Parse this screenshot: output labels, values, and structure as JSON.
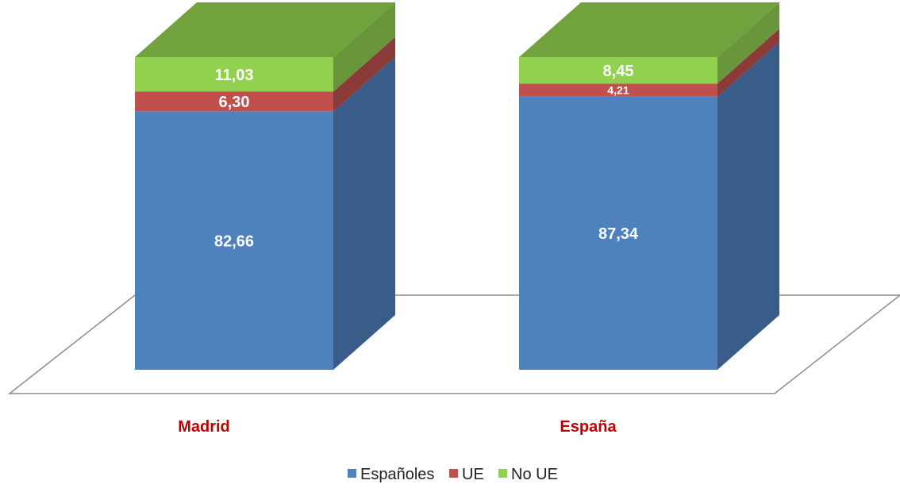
{
  "chart_data": {
    "type": "bar",
    "stacked": true,
    "three_d": true,
    "categories": [
      "Madrid",
      "España"
    ],
    "series": [
      {
        "name": "Españoles",
        "values": [
          82.66,
          87.34
        ],
        "labels": [
          "82,66",
          "87,34"
        ],
        "color": "#4F81BD"
      },
      {
        "name": "UE",
        "values": [
          6.3,
          4.21
        ],
        "labels": [
          "6,30",
          "4,21"
        ],
        "color": "#C0504D"
      },
      {
        "name": "No UE",
        "values": [
          11.03,
          8.45
        ],
        "labels": [
          "11,03",
          "8,45"
        ],
        "color": "#92D050"
      }
    ],
    "category_label_color": "#C00000",
    "legend_position": "bottom",
    "grid": false,
    "ylim": [
      0,
      100
    ]
  }
}
